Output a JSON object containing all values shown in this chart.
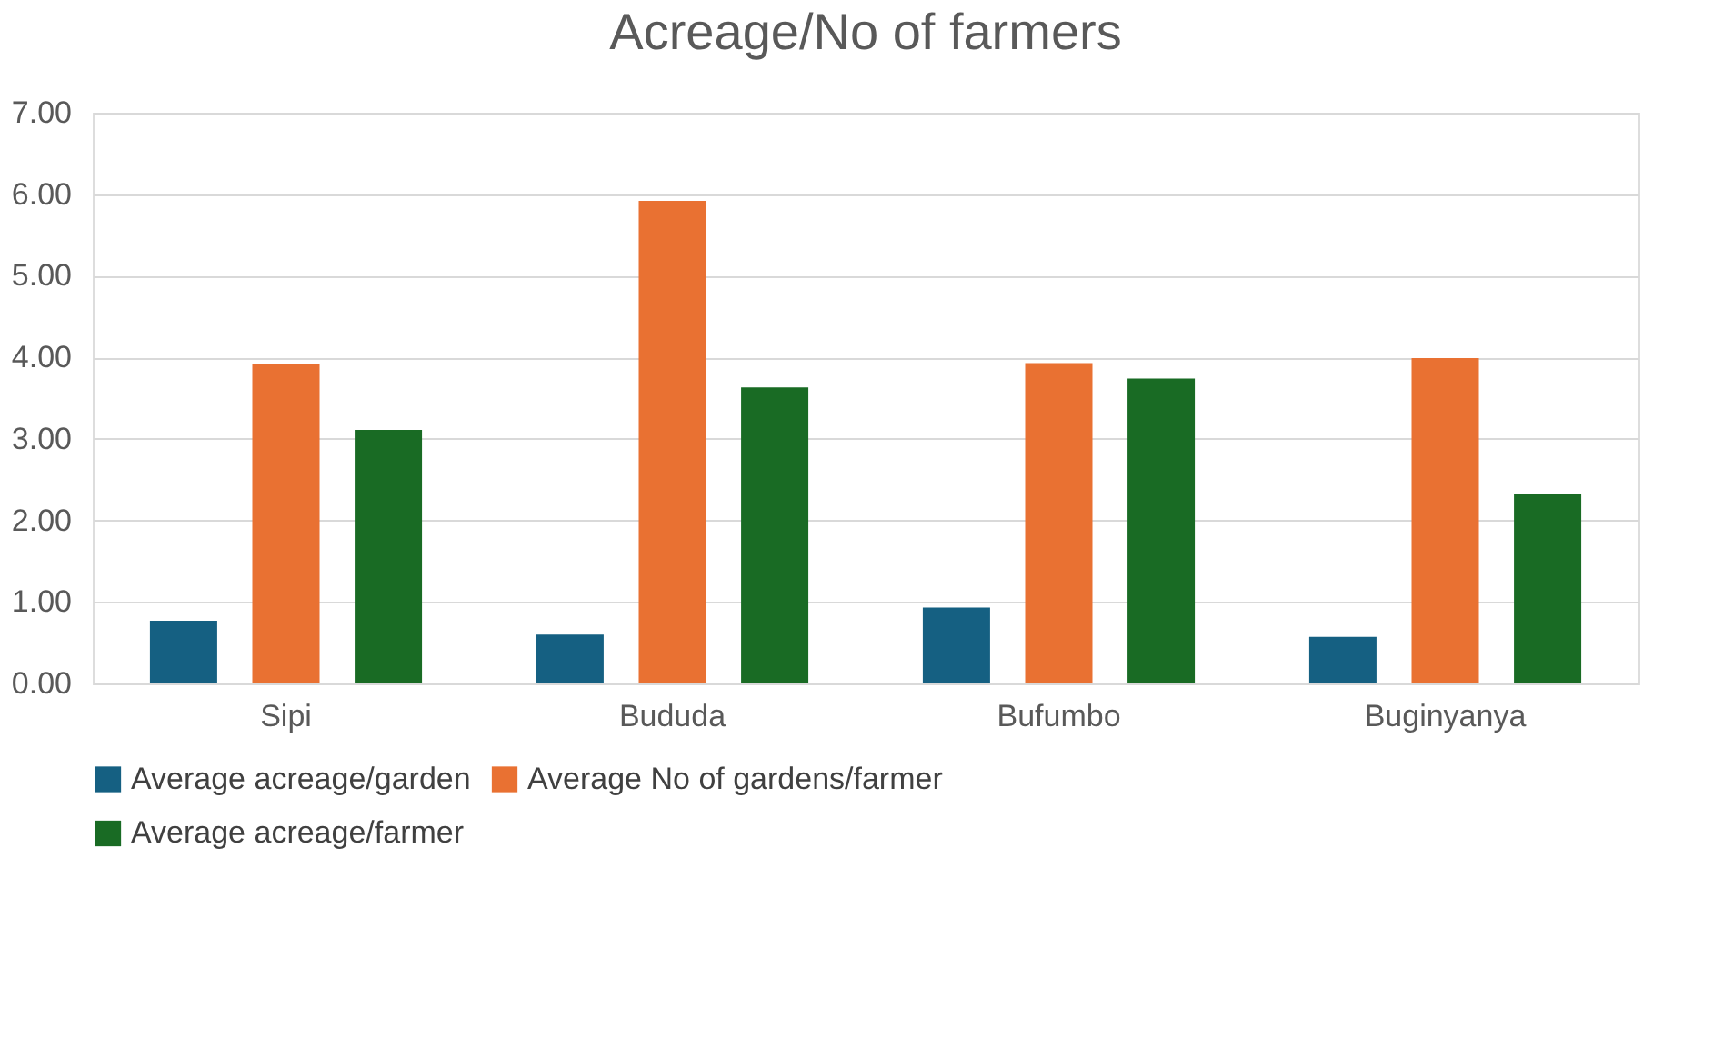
{
  "chart_data": {
    "type": "bar",
    "title": "Acreage/No of farmers",
    "categories": [
      "Sipi",
      "Bududa",
      "Bufumbo",
      "Buginyanya"
    ],
    "series": [
      {
        "name": "Average acreage/garden",
        "color": "#156082",
        "values": [
          0.77,
          0.6,
          0.93,
          0.57
        ]
      },
      {
        "name": "Average No of gardens/farmer",
        "color": "#e97132",
        "values": [
          3.92,
          5.92,
          3.93,
          3.99
        ]
      },
      {
        "name": "Average acreage/farmer",
        "color": "#196b24",
        "values": [
          3.11,
          3.63,
          3.74,
          2.33
        ]
      }
    ],
    "ylim": [
      0,
      7
    ],
    "yticks": [
      {
        "value": 0,
        "label": "0.00"
      },
      {
        "value": 1,
        "label": "1.00"
      },
      {
        "value": 2,
        "label": "2.00"
      },
      {
        "value": 3,
        "label": "3.00"
      },
      {
        "value": 4,
        "label": "4.00"
      },
      {
        "value": 5,
        "label": "5.00"
      },
      {
        "value": 6,
        "label": "6.00"
      },
      {
        "value": 7,
        "label": "7.00"
      }
    ],
    "grid": "y",
    "legend": "bottom"
  }
}
